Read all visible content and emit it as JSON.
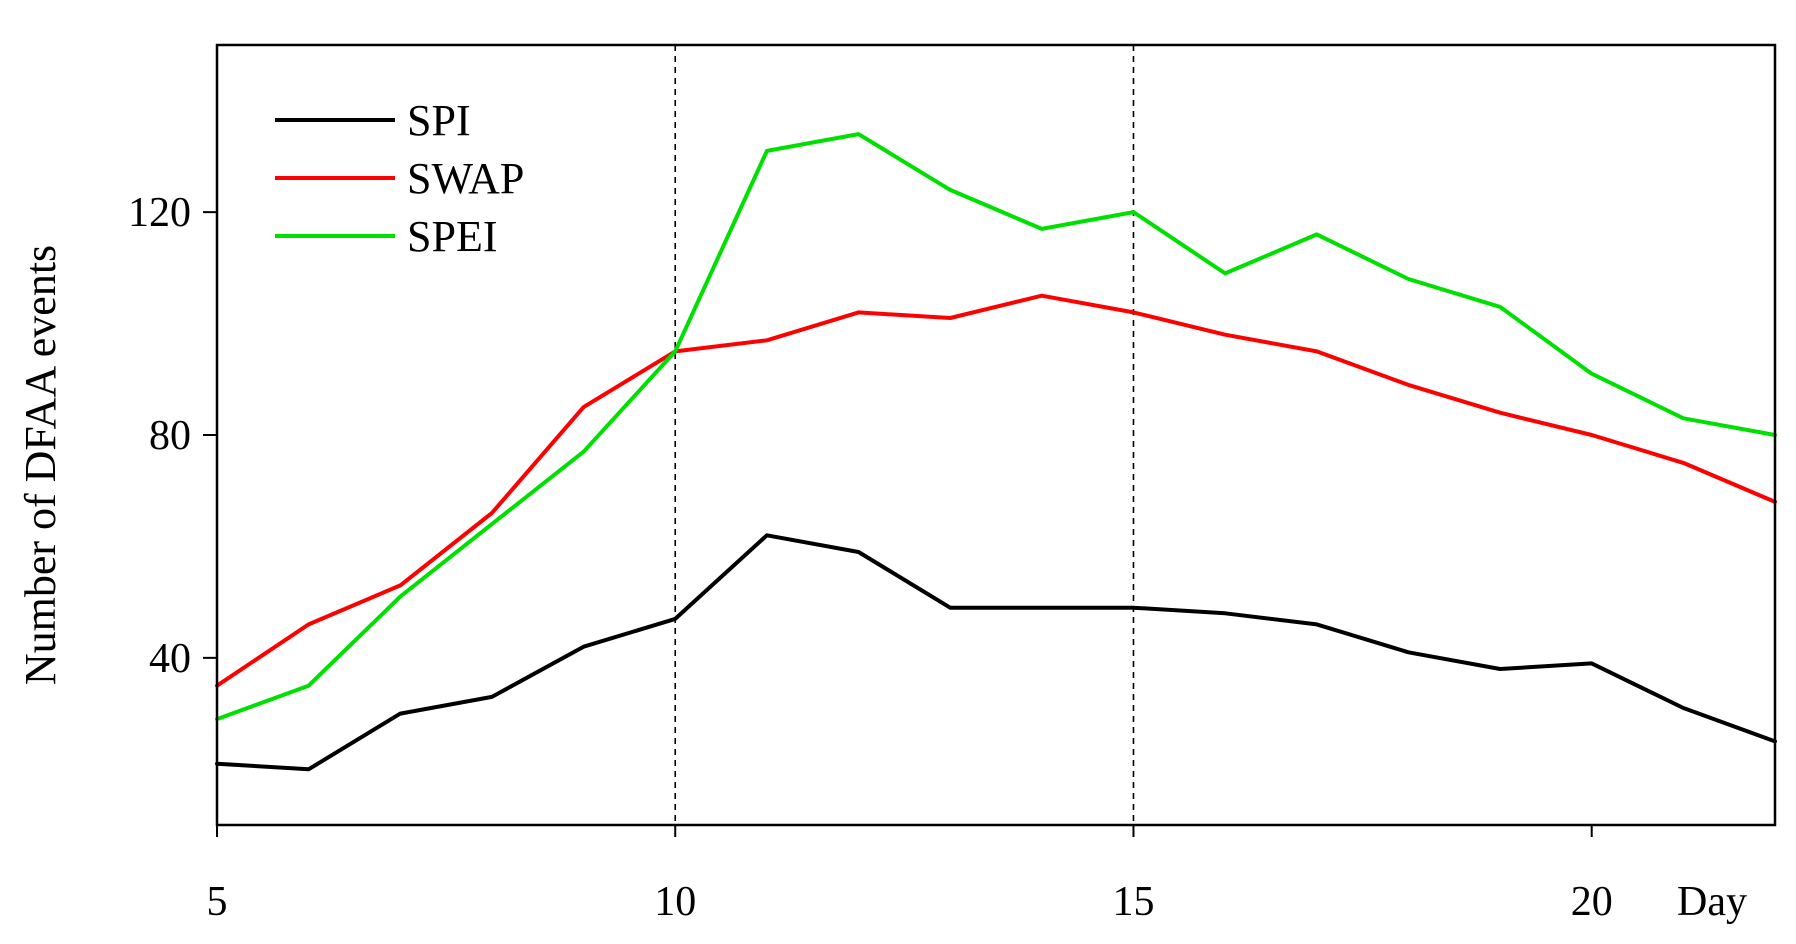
{
  "chart_data": {
    "type": "line",
    "title": "",
    "xlabel": "Day",
    "ylabel": "Number of DFAA events",
    "xlim": [
      5,
      22
    ],
    "ylim": [
      10,
      150
    ],
    "xticks": [
      5,
      10,
      15,
      20
    ],
    "yticks": [
      40,
      80,
      120
    ],
    "reference_lines_x": [
      10,
      15
    ],
    "legend": "top-left",
    "grid": false,
    "x": [
      5,
      6,
      7,
      8,
      9,
      10,
      11,
      12,
      13,
      14,
      15,
      16,
      17,
      18,
      19,
      20,
      21,
      22
    ],
    "series": [
      {
        "name": "SPI",
        "color": "#000000",
        "values": [
          21,
          20,
          30,
          33,
          42,
          47,
          62,
          59,
          49,
          49,
          49,
          48,
          46,
          41,
          38,
          39,
          31,
          25
        ]
      },
      {
        "name": "SWAP",
        "color": "#ff0000",
        "values": [
          35,
          46,
          53,
          66,
          85,
          95,
          97,
          102,
          101,
          105,
          102,
          98,
          95,
          89,
          84,
          80,
          75,
          68
        ]
      },
      {
        "name": "SPEI",
        "color": "#00e000",
        "values": [
          29,
          35,
          51,
          64,
          77,
          95,
          131,
          134,
          124,
          117,
          120,
          109,
          116,
          108,
          103,
          91,
          83,
          80
        ]
      }
    ]
  }
}
